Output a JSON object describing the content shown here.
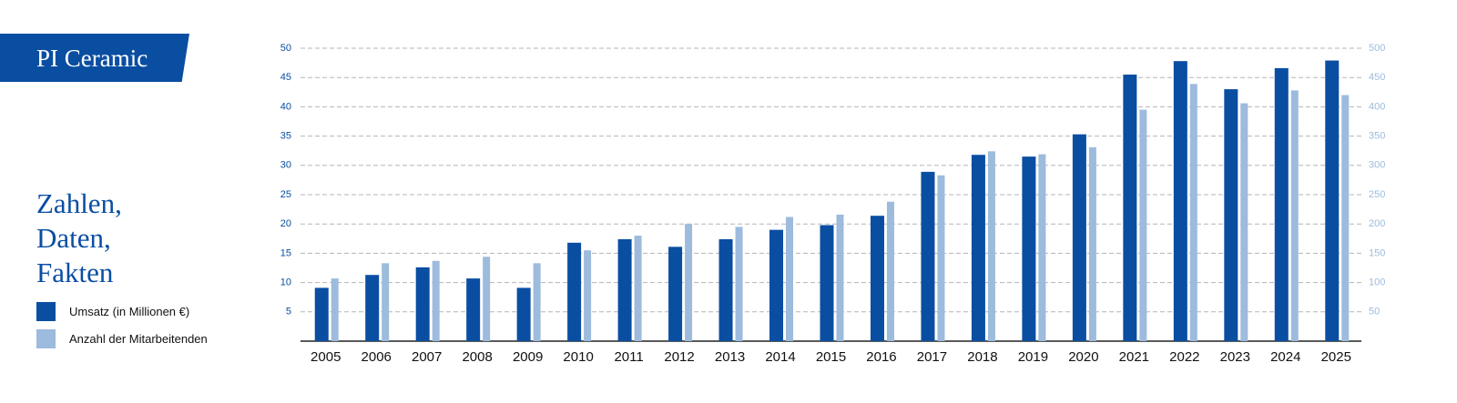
{
  "brand": "PI Ceramic",
  "chart_data": {
    "type": "bar",
    "title": "Zahlen, Daten, Fakten",
    "categories": [
      "2005",
      "2006",
      "2007",
      "2008",
      "2009",
      "2010",
      "2011",
      "2012",
      "2013",
      "2014",
      "2015",
      "2016",
      "2017",
      "2018",
      "2019",
      "2020",
      "2021",
      "2022",
      "2023",
      "2024",
      "2025"
    ],
    "series": [
      {
        "name": "Umsatz (in Millionen €)",
        "color": "#0a4ea2",
        "values": [
          9.1,
          11.3,
          12.6,
          10.7,
          9.1,
          16.8,
          17.4,
          16.1,
          17.4,
          19.0,
          19.8,
          21.4,
          28.9,
          31.8,
          31.5,
          35.3,
          45.5,
          47.8,
          43.0,
          46.6,
          47.9
        ]
      },
      {
        "name": "Anzahl der Mitarbeitenden",
        "color": "#9dbbdc",
        "axis": "y2",
        "values": [
          107,
          133,
          137,
          144,
          133,
          155,
          180,
          200,
          195,
          212,
          216,
          238,
          283,
          324,
          319,
          331,
          395,
          439,
          406,
          428,
          420
        ]
      }
    ],
    "ylim": [
      0,
      50
    ],
    "yticks": [
      5,
      10,
      15,
      20,
      25,
      30,
      35,
      40,
      45,
      50
    ],
    "y2lim": [
      0,
      500
    ],
    "y2ticks": [
      50,
      100,
      150,
      200,
      250,
      300,
      350,
      400,
      450,
      500
    ],
    "grid": true
  }
}
